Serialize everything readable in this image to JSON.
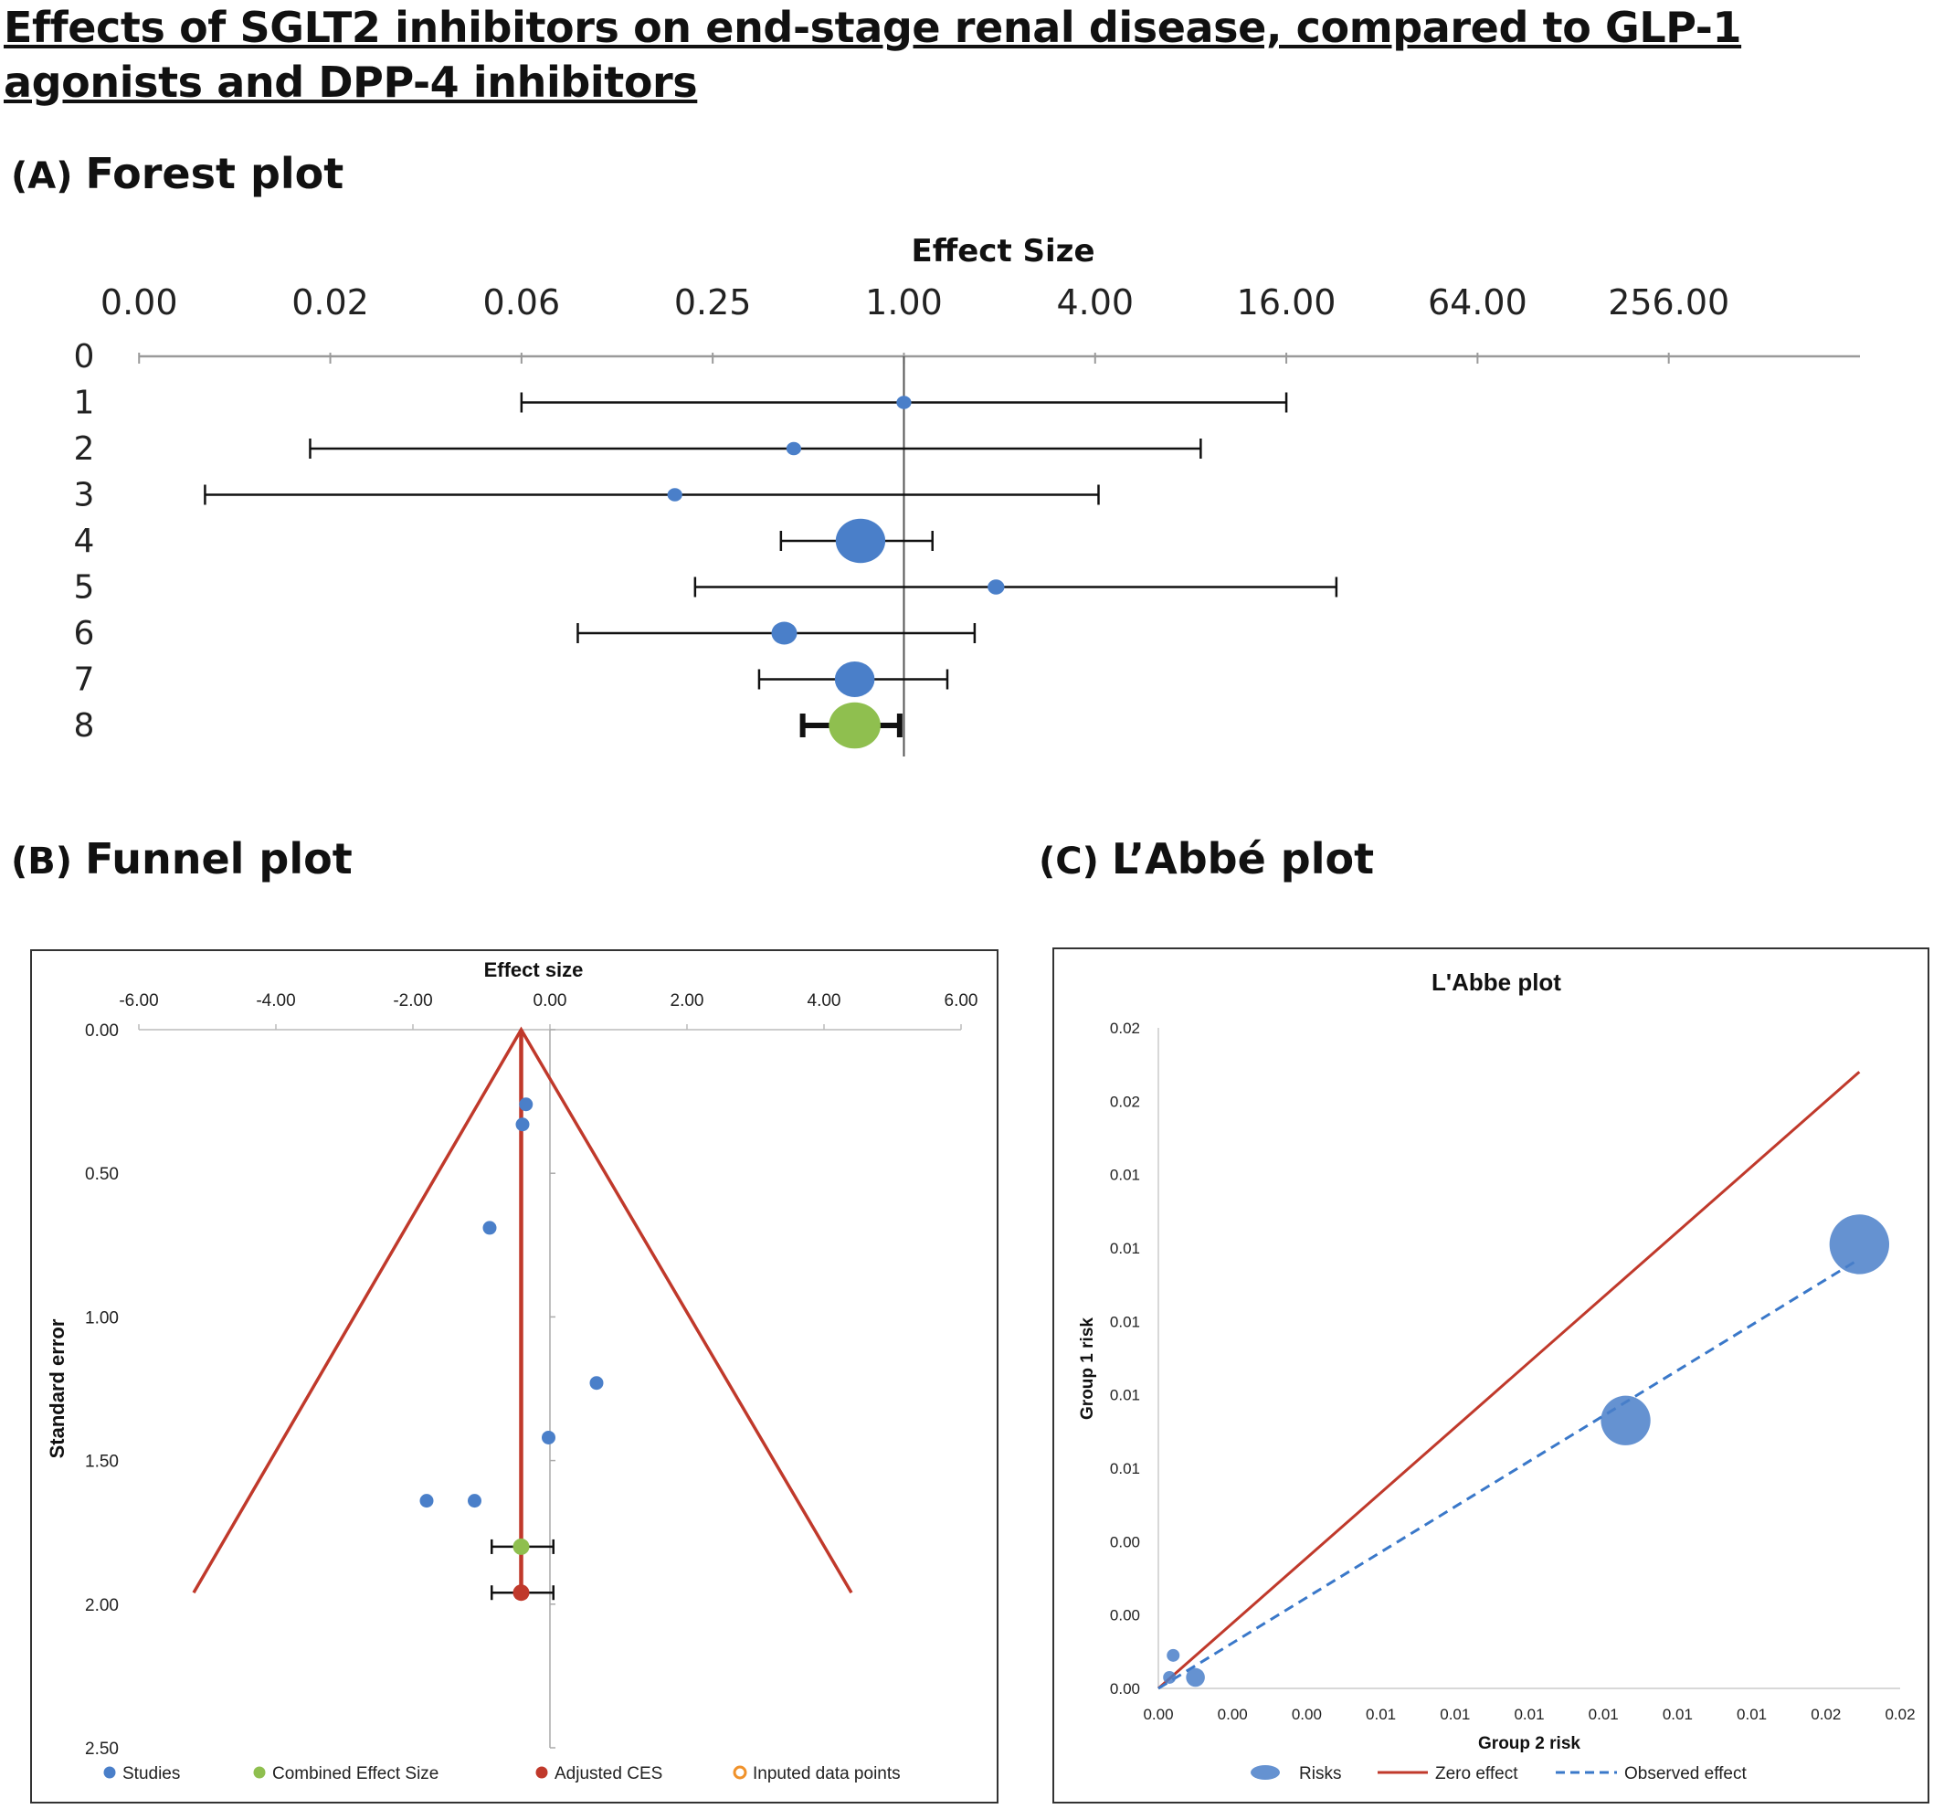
{
  "page": {
    "title": "Effects of SGLT2 inhibitors on end-stage renal disease, compared to GLP-1 agonists and DPP-4 inhibitors"
  },
  "colors": {
    "study": "#4a7fc9",
    "combined": "#8fbf4f",
    "adjusted": "#c0392b",
    "zero_line": "#c0392b",
    "observed_line": "#3a78c9",
    "inputed": "#f0922b"
  },
  "chart_data": [
    {
      "panel": "(A)",
      "heading": "Forest plot",
      "type": "scatter",
      "subtype": "forest",
      "xlabel": "Effect Size",
      "xscale": "log2",
      "x_axis_position": "top",
      "xlim": [
        0.0039,
        1024
      ],
      "xticks": [
        0.00390625,
        0.015625,
        0.0625,
        0.25,
        1,
        4,
        16,
        64,
        256
      ],
      "xtick_labels": [
        "0.00",
        "0.02",
        "0.06",
        "0.25",
        "1.00",
        "4.00",
        "16.00",
        "64.00",
        "256.00"
      ],
      "reference_line": 1,
      "ylim": [
        0,
        8.7
      ],
      "yticks": [
        0,
        1,
        2,
        3,
        4,
        5,
        6,
        7,
        8
      ],
      "ytick_labels": [
        "0",
        "1",
        "2",
        "3",
        "4",
        "5",
        "6",
        "7",
        "8"
      ],
      "rows": [
        {
          "row": 1,
          "estimate": 1.0,
          "lower": 0.0625,
          "upper": 16.0,
          "weight": 0.2,
          "kind": "study"
        },
        {
          "row": 2,
          "estimate": 0.45,
          "lower": 0.0135,
          "upper": 8.6,
          "weight": 0.2,
          "kind": "study"
        },
        {
          "row": 3,
          "estimate": 0.19,
          "lower": 0.0063,
          "upper": 4.1,
          "weight": 0.2,
          "kind": "study"
        },
        {
          "row": 4,
          "estimate": 0.73,
          "lower": 0.41,
          "upper": 1.23,
          "weight": 5.0,
          "kind": "study"
        },
        {
          "row": 5,
          "estimate": 1.95,
          "lower": 0.22,
          "upper": 23.0,
          "weight": 0.3,
          "kind": "study"
        },
        {
          "row": 6,
          "estimate": 0.42,
          "lower": 0.094,
          "upper": 1.67,
          "weight": 1.0,
          "kind": "study"
        },
        {
          "row": 7,
          "estimate": 0.7,
          "lower": 0.35,
          "upper": 1.37,
          "weight": 3.0,
          "kind": "study"
        },
        {
          "row": 8,
          "estimate": 0.7,
          "lower": 0.48,
          "upper": 0.97,
          "weight": 5.5,
          "kind": "combined"
        }
      ]
    },
    {
      "panel": "(B)",
      "heading": "Funnel plot",
      "type": "scatter",
      "subtype": "funnel",
      "xlabel": "Effect size",
      "ylabel": "Standard error",
      "xlim": [
        -6,
        6
      ],
      "xticks": [
        -6,
        -4,
        -2,
        0,
        2,
        4,
        6
      ],
      "xtick_labels": [
        "-6.00",
        "-4.00",
        "-2.00",
        "0.00",
        "2.00",
        "4.00",
        "6.00"
      ],
      "ylim": [
        0,
        2.5
      ],
      "y_inverted": true,
      "yticks": [
        0,
        0.5,
        1,
        1.5,
        2,
        2.5
      ],
      "ytick_labels": [
        "0.00",
        "0.50",
        "1.00",
        "1.50",
        "2.00",
        "2.50"
      ],
      "grid": false,
      "legend_position": "bottom",
      "series": [
        {
          "name": "Studies",
          "kind": "points",
          "color": "#4a7fc9",
          "points": [
            [
              -0.35,
              0.26
            ],
            [
              -0.4,
              0.33
            ],
            [
              -0.88,
              0.69
            ],
            [
              0.68,
              1.23
            ],
            [
              -0.02,
              1.42
            ],
            [
              -1.8,
              1.64
            ],
            [
              -1.1,
              1.64
            ]
          ]
        },
        {
          "name": "Combined Effect Size",
          "kind": "point_ci",
          "color": "#8fbf4f",
          "points": [
            [
              -0.42,
              1.8
            ]
          ],
          "ci": [
            -0.85,
            0.05
          ]
        },
        {
          "name": "Adjusted CES",
          "kind": "point_ci",
          "color": "#c0392b",
          "points": [
            [
              -0.42,
              1.96
            ]
          ],
          "ci": [
            -0.85,
            0.05
          ]
        },
        {
          "name": "Inputed data points",
          "kind": "points",
          "color": "#f0922b",
          "points": []
        }
      ],
      "funnel": {
        "apex": [
          -0.42,
          0.0
        ],
        "left_base": [
          -5.2,
          1.96
        ],
        "right_base": [
          4.4,
          1.96
        ],
        "center_line_x": -0.42
      }
    },
    {
      "panel": "(C)",
      "heading": "L’Abbé plot",
      "type": "scatter",
      "subtype": "labbe",
      "title": "L'Abbe plot",
      "xlabel": "Group 2 risk",
      "ylabel": "Group 1 risk",
      "xlim": [
        0,
        0.02
      ],
      "ylim": [
        0,
        0.018
      ],
      "xticks": [
        0,
        0.002,
        0.004,
        0.006,
        0.008,
        0.01,
        0.012,
        0.014,
        0.016,
        0.018,
        0.02
      ],
      "xtick_labels": [
        "0.00",
        "0.00",
        "0.00",
        "0.01",
        "0.01",
        "0.01",
        "0.01",
        "0.01",
        "0.01",
        "0.02",
        "0.02"
      ],
      "yticks": [
        0,
        0.002,
        0.004,
        0.006,
        0.008,
        0.01,
        0.012,
        0.014,
        0.016,
        0.018
      ],
      "ytick_labels": [
        "0.00",
        "0.00",
        "0.00",
        "0.01",
        "0.01",
        "0.01",
        "0.01",
        "0.01",
        "0.02",
        "0.02"
      ],
      "legend_position": "bottom",
      "series": [
        {
          "name": "Risks",
          "kind": "bubbles",
          "color": "#4a7fc9",
          "points": [
            {
              "x": 0.0004,
              "y": 0.0009,
              "size": 1
            },
            {
              "x": 0.0003,
              "y": 0.0003,
              "size": 1
            },
            {
              "x": 0.001,
              "y": 0.0003,
              "size": 3
            },
            {
              "x": 0.0126,
              "y": 0.0073,
              "size": 30
            },
            {
              "x": 0.0189,
              "y": 0.0121,
              "size": 45
            }
          ]
        },
        {
          "name": "Zero effect",
          "kind": "line",
          "color": "#c0392b",
          "style": "solid",
          "points": [
            [
              0,
              0
            ],
            [
              0.0189,
              0.0168
            ]
          ]
        },
        {
          "name": "Observed effect",
          "kind": "line",
          "color": "#3a78c9",
          "style": "dashed",
          "points": [
            [
              0,
              0
            ],
            [
              0.0189,
              0.0117
            ]
          ]
        }
      ]
    }
  ]
}
